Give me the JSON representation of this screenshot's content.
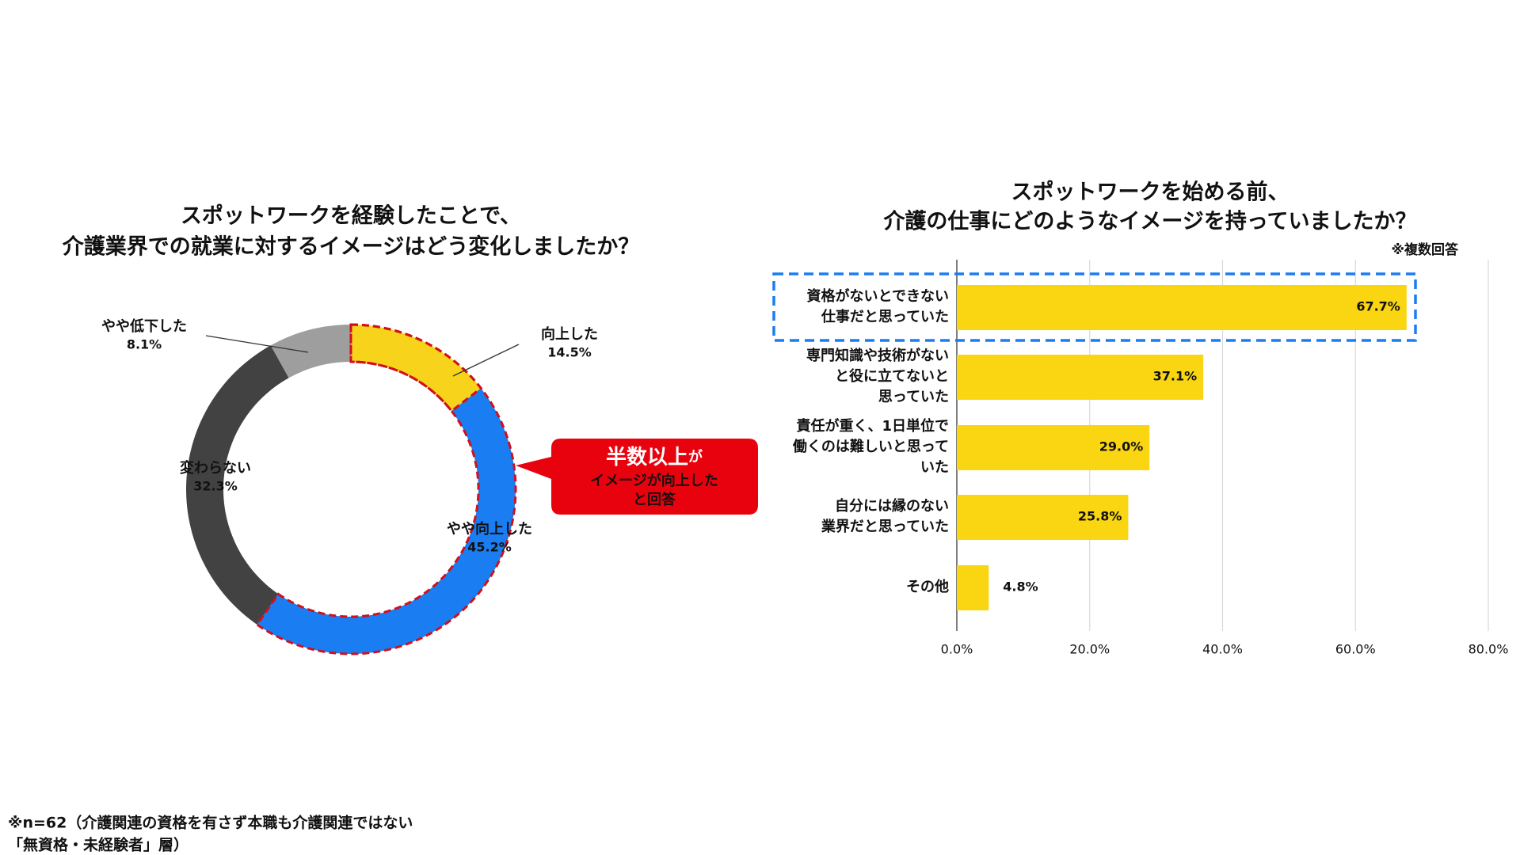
{
  "chart_data": [
    {
      "type": "donut",
      "title": [
        "スポットワークを経験したことで、",
        "介護業界での就業に対するイメージはどう変化しましたか？"
      ],
      "categories": [
        "向上した",
        "やや向上した",
        "変わらない",
        "やや低下した"
      ],
      "values": [
        14.5,
        45.2,
        32.3,
        8.1
      ],
      "value_labels": [
        "14.5%",
        "45.2%",
        "32.3%",
        "8.1%"
      ],
      "colors": [
        "#f7d31c",
        "#1a7df2",
        "#424242",
        "#9e9e9e"
      ],
      "annotation": [
        "半数以上",
        "が",
        "イメージが向上した",
        "と回答"
      ]
    },
    {
      "type": "hbar",
      "title": [
        "スポットワークを始める前、",
        "介護の仕事にどのようなイメージを持っていましたか？"
      ],
      "note": "※複数回答",
      "categories": [
        [
          "資格がないとできない",
          "仕事だと思っていた"
        ],
        [
          "専門知識や技術がない",
          "と役に立てないと",
          "思っていた"
        ],
        [
          "責任が重く、1日単位で",
          "働くのは難しいと思って",
          "いた"
        ],
        [
          "自分には縁のない",
          "業界だと思っていた"
        ],
        [
          "その他"
        ]
      ],
      "values": [
        67.7,
        37.1,
        29.0,
        25.8,
        4.8
      ],
      "value_labels": [
        "67.7%",
        "37.1%",
        "29.0%",
        "25.8%",
        "4.8%"
      ],
      "color": "#fad511",
      "xlim": [
        0,
        80
      ],
      "xticks": [
        {
          "value": 0,
          "label": "0.0%"
        },
        {
          "value": 20,
          "label": "20.0%"
        },
        {
          "value": 40,
          "label": "40.0%"
        },
        {
          "value": 60,
          "label": "60.0%"
        },
        {
          "value": 80,
          "label": "80.0%"
        }
      ],
      "grid": true
    }
  ],
  "footnote": [
    "※n=62（介護関連の資格を有さず本職も介護関連ではない",
    "「無資格・未経験者」層）"
  ]
}
